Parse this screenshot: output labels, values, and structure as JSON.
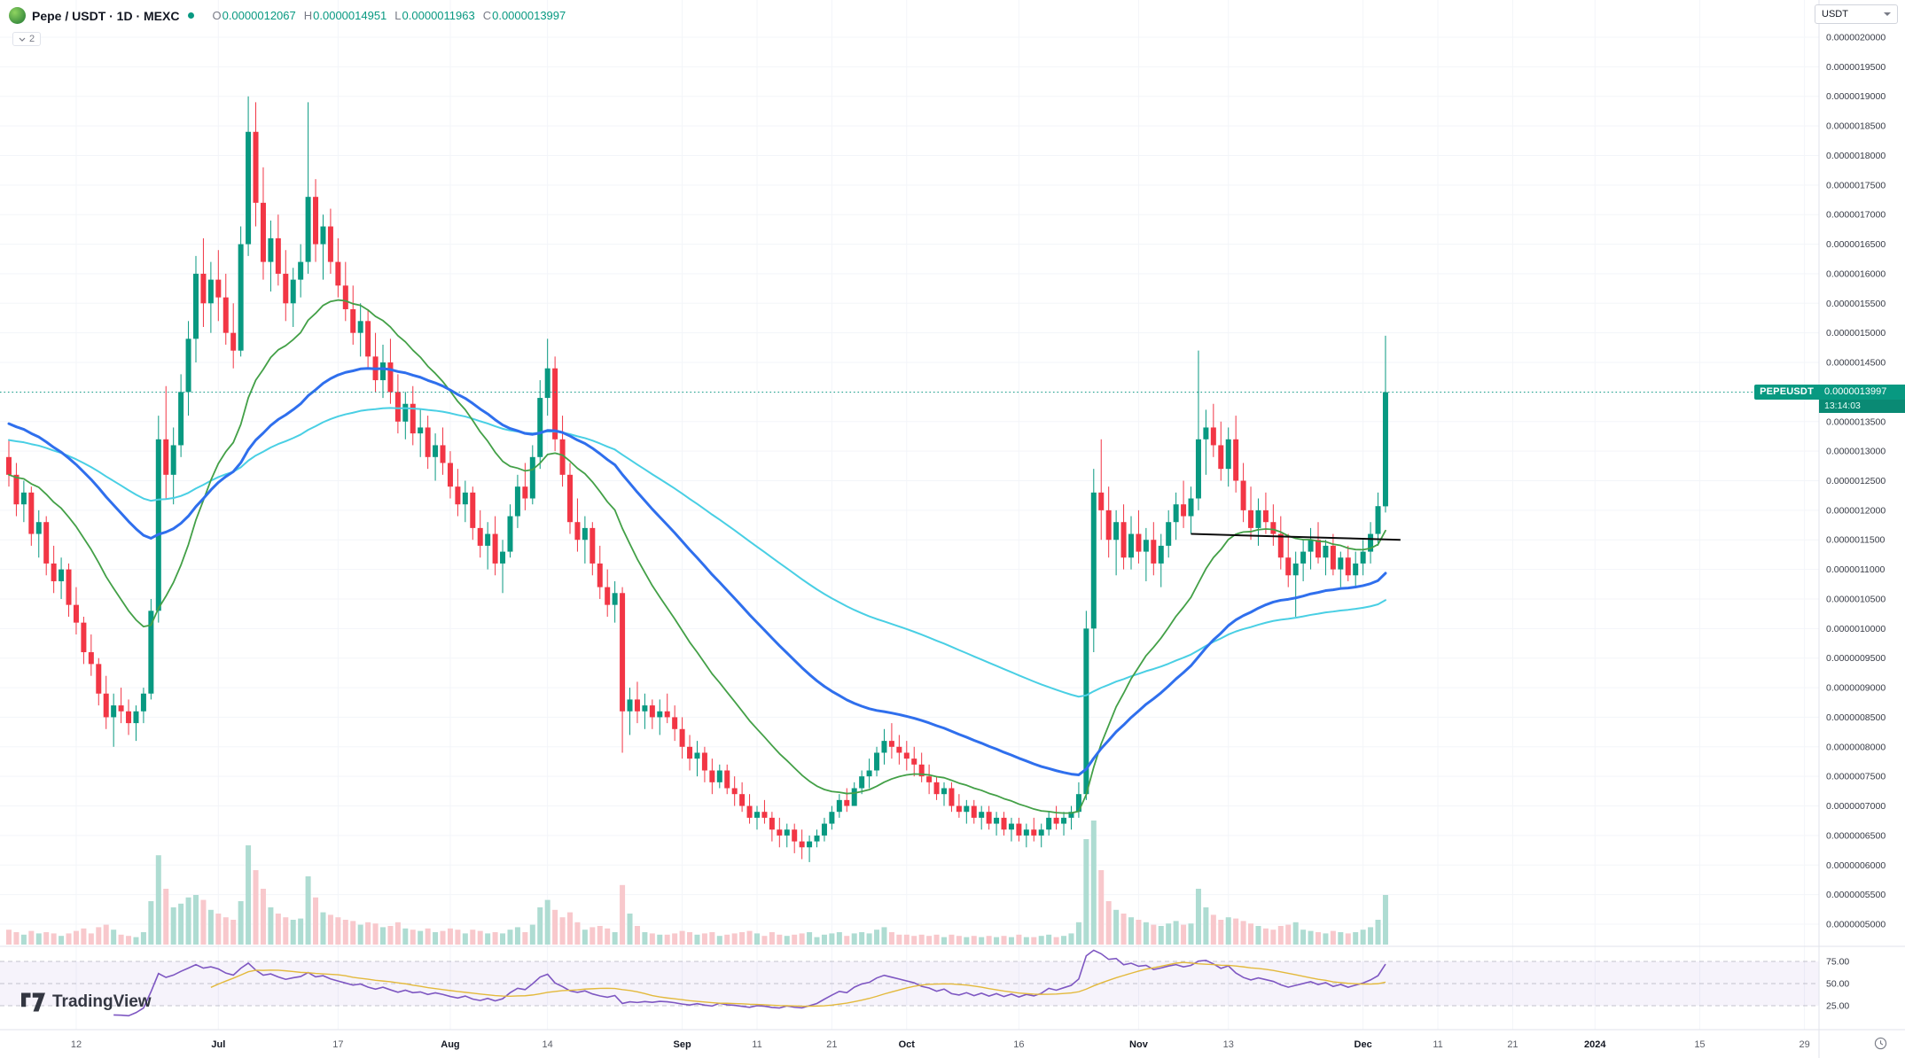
{
  "header": {
    "symbol_title": "Pepe / USDT · 1D · MEXC",
    "ohlc": [
      {
        "k": "O",
        "v": "0.0000012067"
      },
      {
        "k": "H",
        "v": "0.0000014951"
      },
      {
        "k": "L",
        "v": "0.0000011963"
      },
      {
        "k": "C",
        "v": "0.0000013997"
      }
    ],
    "indicator_chip": "2",
    "currency_selector": "USDT"
  },
  "price_flag": {
    "symbol": "PEPEUSDT",
    "price": "0.0000013997",
    "countdown": "13:14:03"
  },
  "watermark": "TradingView",
  "colors": {
    "up": "#089981",
    "down": "#f23645",
    "vol_up": "#aedcd2",
    "vol_down": "#f8c8cc",
    "ma_fast": "#43a047",
    "ma_mid": "#2f6fed",
    "ma_slow": "#49cfe4",
    "rsi": "#7e57c2",
    "rsi_ma": "#e3b93c",
    "band_line": "#9598a6",
    "band_fill": "rgba(126,87,194,0.07)",
    "price_line": "#089981",
    "trendline": "#0b0b0b",
    "axis_text": "#363a45",
    "muted_text": "#787b86",
    "separator": "#e0e3eb"
  },
  "chart_data": {
    "type": "candlestick",
    "title": "Pepe / USDT · 1D · MEXC",
    "interval": "1D",
    "exchange": "MEXC",
    "price_scale_factor": 1e-07,
    "current_price": 13.997,
    "y_axis": {
      "min": 5,
      "max": 20,
      "step": 0.5,
      "decimals": 10
    },
    "rsi_levels": [
      75,
      50,
      25
    ],
    "rsi_period": 14,
    "rsi_ma_period": 14,
    "x_axis_labels": [
      {
        "d": 9,
        "t": "12",
        "m": false
      },
      {
        "d": 28,
        "t": "Jul",
        "m": true
      },
      {
        "d": 44,
        "t": "17",
        "m": false
      },
      {
        "d": 59,
        "t": "Aug",
        "m": true
      },
      {
        "d": 72,
        "t": "14",
        "m": false
      },
      {
        "d": 90,
        "t": "Sep",
        "m": true
      },
      {
        "d": 100,
        "t": "11",
        "m": false
      },
      {
        "d": 110,
        "t": "21",
        "m": false
      },
      {
        "d": 120,
        "t": "Oct",
        "m": true
      },
      {
        "d": 135,
        "t": "16",
        "m": false
      },
      {
        "d": 151,
        "t": "Nov",
        "m": true
      },
      {
        "d": 163,
        "t": "13",
        "m": false
      },
      {
        "d": 181,
        "t": "Dec",
        "m": true
      },
      {
        "d": 191,
        "t": "11",
        "m": false
      },
      {
        "d": 201,
        "t": "21",
        "m": false
      },
      {
        "d": 212,
        "t": "2024",
        "m": true
      },
      {
        "d": 226,
        "t": "15",
        "m": false
      },
      {
        "d": 240,
        "t": "29",
        "m": false
      }
    ],
    "ma_overlays": [
      {
        "type": "ema",
        "period": 100,
        "color_key": "ma_slow",
        "width": 2,
        "seed": 13.2
      },
      {
        "type": "ema",
        "period": 21,
        "color_key": "ma_fast",
        "width": 1.8,
        "seed": 12.6
      },
      {
        "type": "ema",
        "period": 50,
        "color_key": "ma_mid",
        "width": 3,
        "seed": 13.5
      }
    ],
    "annotations": [
      {
        "type": "trendline",
        "from_day": 158,
        "from_price": 11.6,
        "to_day": 186,
        "to_price": 11.5
      }
    ],
    "candles": [
      [
        12.9,
        13.2,
        12.4,
        12.6,
        12
      ],
      [
        12.6,
        12.8,
        11.9,
        12.1,
        10
      ],
      [
        12.1,
        12.5,
        11.8,
        12.3,
        8
      ],
      [
        12.3,
        12.4,
        11.4,
        11.6,
        11
      ],
      [
        11.6,
        12,
        11.2,
        11.8,
        9
      ],
      [
        11.8,
        11.9,
        10.9,
        11.1,
        10
      ],
      [
        11.1,
        11.4,
        10.6,
        10.8,
        9
      ],
      [
        10.8,
        11.2,
        10.5,
        11,
        7
      ],
      [
        11,
        11.1,
        10.2,
        10.4,
        9
      ],
      [
        10.4,
        10.7,
        9.9,
        10.1,
        11
      ],
      [
        10.1,
        10.2,
        9.4,
        9.6,
        13
      ],
      [
        9.6,
        9.9,
        9.2,
        9.4,
        9
      ],
      [
        9.4,
        9.5,
        8.7,
        8.9,
        14
      ],
      [
        8.9,
        9.2,
        8.3,
        8.5,
        16
      ],
      [
        8.5,
        8.9,
        8,
        8.7,
        12
      ],
      [
        8.7,
        9,
        8.4,
        8.6,
        8
      ],
      [
        8.6,
        8.8,
        8.2,
        8.4,
        7
      ],
      [
        8.4,
        8.7,
        8.1,
        8.6,
        6
      ],
      [
        8.6,
        9,
        8.4,
        8.9,
        10
      ],
      [
        8.9,
        10.5,
        8.8,
        10.3,
        35
      ],
      [
        10.3,
        13.6,
        10.1,
        13.2,
        72
      ],
      [
        13.2,
        14.1,
        12.2,
        12.6,
        45
      ],
      [
        12.6,
        13.4,
        12.1,
        13.1,
        30
      ],
      [
        13.1,
        14.3,
        12.9,
        14,
        33
      ],
      [
        14,
        15.2,
        13.6,
        14.9,
        38
      ],
      [
        14.9,
        16.3,
        14.5,
        16,
        40
      ],
      [
        16,
        16.6,
        15.1,
        15.5,
        36
      ],
      [
        15.5,
        16.2,
        15,
        15.9,
        28
      ],
      [
        15.9,
        16.4,
        15.2,
        15.6,
        25
      ],
      [
        15.6,
        16,
        14.8,
        15,
        22
      ],
      [
        15,
        15.5,
        14.4,
        14.7,
        20
      ],
      [
        14.7,
        16.8,
        14.6,
        16.5,
        35
      ],
      [
        16.5,
        19,
        16.3,
        18.4,
        80
      ],
      [
        18.4,
        18.9,
        16.8,
        17.2,
        60
      ],
      [
        17.2,
        17.8,
        15.9,
        16.2,
        45
      ],
      [
        16.2,
        16.9,
        15.7,
        16.6,
        30
      ],
      [
        16.6,
        17,
        15.8,
        16,
        25
      ],
      [
        16,
        16.4,
        15.2,
        15.5,
        22
      ],
      [
        15.5,
        16.1,
        15.1,
        15.9,
        20
      ],
      [
        15.9,
        16.5,
        15.6,
        16.2,
        21
      ],
      [
        16.2,
        18.9,
        16,
        17.3,
        55
      ],
      [
        17.3,
        17.6,
        16.2,
        16.5,
        38
      ],
      [
        16.5,
        17,
        15.9,
        16.8,
        26
      ],
      [
        16.8,
        17.1,
        16,
        16.2,
        24
      ],
      [
        16.2,
        16.6,
        15.6,
        15.8,
        22
      ],
      [
        15.8,
        16.2,
        15.2,
        15.4,
        20
      ],
      [
        15.4,
        15.8,
        14.8,
        15,
        19
      ],
      [
        15,
        15.5,
        14.6,
        15.2,
        16
      ],
      [
        15.2,
        15.4,
        14.4,
        14.6,
        18
      ],
      [
        14.6,
        15,
        14,
        14.2,
        17
      ],
      [
        14.2,
        14.8,
        13.9,
        14.5,
        14
      ],
      [
        14.5,
        14.9,
        13.8,
        14,
        15
      ],
      [
        14,
        14.3,
        13.3,
        13.5,
        18
      ],
      [
        13.5,
        14,
        13.2,
        13.8,
        13
      ],
      [
        13.8,
        14.1,
        13.1,
        13.3,
        12
      ],
      [
        13.3,
        13.7,
        12.9,
        13.4,
        11
      ],
      [
        13.4,
        13.6,
        12.7,
        12.9,
        13
      ],
      [
        12.9,
        13.3,
        12.5,
        13.1,
        10
      ],
      [
        13.1,
        13.4,
        12.6,
        12.8,
        11
      ],
      [
        12.8,
        13,
        12.2,
        12.4,
        13
      ],
      [
        12.4,
        12.7,
        11.9,
        12.1,
        12
      ],
      [
        12.1,
        12.5,
        11.8,
        12.3,
        9
      ],
      [
        12.3,
        12.4,
        11.5,
        11.7,
        12
      ],
      [
        11.7,
        12,
        11.2,
        11.4,
        11
      ],
      [
        11.4,
        11.8,
        11,
        11.6,
        9
      ],
      [
        11.6,
        11.9,
        10.9,
        11.1,
        10
      ],
      [
        11.1,
        11.5,
        10.6,
        11.3,
        9
      ],
      [
        11.3,
        12.1,
        11.2,
        11.9,
        12
      ],
      [
        11.9,
        12.6,
        11.7,
        12.4,
        14
      ],
      [
        12.4,
        12.8,
        12,
        12.2,
        10
      ],
      [
        12.2,
        13.1,
        12.1,
        12.9,
        16
      ],
      [
        12.9,
        14.2,
        12.7,
        13.9,
        30
      ],
      [
        13.9,
        14.9,
        13.6,
        14.4,
        36
      ],
      [
        14.4,
        14.6,
        13,
        13.2,
        28
      ],
      [
        13.2,
        13.6,
        12.4,
        12.6,
        22
      ],
      [
        12.6,
        12.8,
        11.6,
        11.8,
        26
      ],
      [
        11.8,
        12.2,
        11.3,
        11.5,
        18
      ],
      [
        11.5,
        11.9,
        11.1,
        11.7,
        12
      ],
      [
        11.7,
        11.8,
        10.9,
        11.1,
        14
      ],
      [
        11.1,
        11.4,
        10.5,
        10.7,
        15
      ],
      [
        10.7,
        11,
        10.2,
        10.4,
        13
      ],
      [
        10.4,
        10.8,
        10.1,
        10.6,
        10
      ],
      [
        10.6,
        10.7,
        7.9,
        8.6,
        48
      ],
      [
        8.6,
        9,
        8.2,
        8.8,
        25
      ],
      [
        8.8,
        9.1,
        8.4,
        8.6,
        15
      ],
      [
        8.6,
        8.9,
        8.3,
        8.7,
        10
      ],
      [
        8.7,
        8.8,
        8.3,
        8.5,
        9
      ],
      [
        8.5,
        8.8,
        8.2,
        8.6,
        8
      ],
      [
        8.6,
        8.9,
        8.4,
        8.5,
        8
      ],
      [
        8.5,
        8.7,
        8.1,
        8.3,
        9
      ],
      [
        8.3,
        8.5,
        7.8,
        8,
        11
      ],
      [
        8,
        8.2,
        7.6,
        7.8,
        10
      ],
      [
        7.8,
        8.1,
        7.5,
        7.9,
        8
      ],
      [
        7.9,
        8,
        7.4,
        7.6,
        9
      ],
      [
        7.6,
        7.8,
        7.2,
        7.4,
        10
      ],
      [
        7.4,
        7.7,
        7.3,
        7.6,
        7
      ],
      [
        7.6,
        7.7,
        7.2,
        7.3,
        8
      ],
      [
        7.3,
        7.5,
        7,
        7.2,
        9
      ],
      [
        7.2,
        7.4,
        6.9,
        7,
        10
      ],
      [
        7,
        7.2,
        6.7,
        6.8,
        11
      ],
      [
        6.8,
        7,
        6.6,
        6.9,
        9
      ],
      [
        6.9,
        7.1,
        6.7,
        6.8,
        7
      ],
      [
        6.8,
        6.9,
        6.4,
        6.6,
        10
      ],
      [
        6.6,
        6.8,
        6.3,
        6.5,
        8
      ],
      [
        6.5,
        6.7,
        6.3,
        6.6,
        7
      ],
      [
        6.6,
        6.7,
        6.2,
        6.4,
        8
      ],
      [
        6.4,
        6.6,
        6.1,
        6.3,
        9
      ],
      [
        6.3,
        6.5,
        6.05,
        6.4,
        10
      ],
      [
        6.4,
        6.6,
        6.3,
        6.5,
        6
      ],
      [
        6.5,
        6.8,
        6.4,
        6.7,
        8
      ],
      [
        6.7,
        7,
        6.6,
        6.9,
        9
      ],
      [
        6.9,
        7.2,
        6.8,
        7.1,
        10
      ],
      [
        7.1,
        7.3,
        6.9,
        7,
        7
      ],
      [
        7,
        7.4,
        7,
        7.3,
        9
      ],
      [
        7.3,
        7.6,
        7.2,
        7.5,
        10
      ],
      [
        7.5,
        7.8,
        7.3,
        7.6,
        9
      ],
      [
        7.6,
        8,
        7.5,
        7.9,
        12
      ],
      [
        7.9,
        8.3,
        7.7,
        8.1,
        14
      ],
      [
        8.1,
        8.4,
        7.8,
        8,
        10
      ],
      [
        8,
        8.2,
        7.7,
        7.9,
        8
      ],
      [
        7.9,
        8.1,
        7.6,
        7.8,
        8
      ],
      [
        7.8,
        8,
        7.5,
        7.7,
        7
      ],
      [
        7.7,
        7.9,
        7.4,
        7.5,
        8
      ],
      [
        7.5,
        7.7,
        7.2,
        7.4,
        7
      ],
      [
        7.4,
        7.5,
        7.1,
        7.2,
        8
      ],
      [
        7.2,
        7.4,
        7,
        7.3,
        6
      ],
      [
        7.3,
        7.4,
        6.9,
        7,
        8
      ],
      [
        7,
        7.2,
        6.8,
        6.9,
        7
      ],
      [
        6.9,
        7.1,
        6.7,
        7,
        6
      ],
      [
        7,
        7.1,
        6.7,
        6.8,
        7
      ],
      [
        6.8,
        7,
        6.6,
        6.9,
        6
      ],
      [
        6.9,
        7,
        6.6,
        6.7,
        7
      ],
      [
        6.7,
        6.9,
        6.5,
        6.8,
        6
      ],
      [
        6.8,
        6.9,
        6.5,
        6.6,
        7
      ],
      [
        6.6,
        6.8,
        6.4,
        6.7,
        6
      ],
      [
        6.7,
        6.8,
        6.4,
        6.5,
        8
      ],
      [
        6.5,
        6.7,
        6.3,
        6.6,
        6
      ],
      [
        6.6,
        6.8,
        6.4,
        6.5,
        6
      ],
      [
        6.5,
        6.7,
        6.3,
        6.6,
        7
      ],
      [
        6.6,
        6.9,
        6.5,
        6.8,
        8
      ],
      [
        6.8,
        7,
        6.6,
        6.7,
        6
      ],
      [
        6.7,
        6.9,
        6.5,
        6.8,
        7
      ],
      [
        6.8,
        7,
        6.6,
        6.9,
        9
      ],
      [
        6.9,
        7.4,
        6.8,
        7.2,
        18
      ],
      [
        7.2,
        10.3,
        7.1,
        10,
        85
      ],
      [
        10,
        12.7,
        9.6,
        12.3,
        100
      ],
      [
        12.3,
        13.2,
        11.5,
        12,
        60
      ],
      [
        12,
        12.4,
        11.2,
        11.5,
        35
      ],
      [
        11.5,
        12,
        10.9,
        11.8,
        28
      ],
      [
        11.8,
        12.1,
        11,
        11.2,
        25
      ],
      [
        11.2,
        11.9,
        11,
        11.6,
        22
      ],
      [
        11.6,
        12,
        11.1,
        11.3,
        20
      ],
      [
        11.3,
        11.7,
        10.8,
        11.5,
        18
      ],
      [
        11.5,
        11.8,
        10.9,
        11.1,
        16
      ],
      [
        11.1,
        11.6,
        10.7,
        11.4,
        15
      ],
      [
        11.4,
        12,
        11.2,
        11.8,
        17
      ],
      [
        11.8,
        12.3,
        11.5,
        12.1,
        19
      ],
      [
        12.1,
        12.5,
        11.7,
        11.9,
        16
      ],
      [
        11.9,
        12.4,
        11.6,
        12.2,
        17
      ],
      [
        12.2,
        14.7,
        12,
        13.2,
        45
      ],
      [
        13.2,
        13.7,
        12.6,
        13.4,
        30
      ],
      [
        13.4,
        13.8,
        12.9,
        13.1,
        24
      ],
      [
        13.1,
        13.5,
        12.5,
        12.7,
        20
      ],
      [
        12.7,
        13.4,
        12.4,
        13.2,
        22
      ],
      [
        13.2,
        13.6,
        12.3,
        12.5,
        21
      ],
      [
        12.5,
        12.8,
        11.8,
        12,
        19
      ],
      [
        12,
        12.4,
        11.5,
        11.7,
        17
      ],
      [
        11.7,
        12.2,
        11.4,
        12,
        15
      ],
      [
        12,
        12.3,
        11.6,
        11.8,
        13
      ],
      [
        11.8,
        12.1,
        11.4,
        11.6,
        12
      ],
      [
        11.6,
        11.9,
        11,
        11.2,
        15
      ],
      [
        11.2,
        11.6,
        10.7,
        10.9,
        16
      ],
      [
        10.9,
        11.3,
        10.2,
        11.1,
        18
      ],
      [
        11.1,
        11.5,
        10.8,
        11.3,
        12
      ],
      [
        11.3,
        11.7,
        11,
        11.5,
        11
      ],
      [
        11.5,
        11.8,
        11.1,
        11.2,
        10
      ],
      [
        11.2,
        11.5,
        10.9,
        11.4,
        9
      ],
      [
        11.4,
        11.6,
        10.9,
        11,
        11
      ],
      [
        11,
        11.3,
        10.7,
        11.2,
        10
      ],
      [
        11.2,
        11.4,
        10.8,
        10.9,
        9
      ],
      [
        10.9,
        11.3,
        10.7,
        11.1,
        10
      ],
      [
        11.1,
        11.5,
        10.9,
        11.3,
        12
      ],
      [
        11.3,
        11.8,
        11.1,
        11.6,
        14
      ],
      [
        11.6,
        12.3,
        11.4,
        12.07,
        20
      ],
      [
        12.067,
        14.951,
        11.963,
        13.997,
        40
      ]
    ]
  }
}
